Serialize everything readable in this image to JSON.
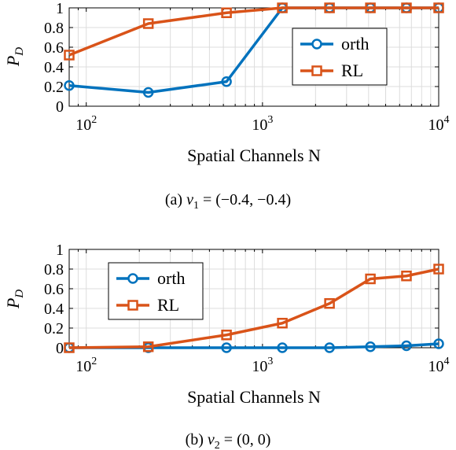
{
  "chart_data": [
    {
      "type": "line",
      "caption": "(a) ν₁ = (−0.4, −0.4)",
      "caption_label": "(a)",
      "caption_math": "ν",
      "caption_sub": "1",
      "caption_rest": " = (−0.4, −0.4)",
      "xlabel": "Spatial Channels N",
      "ylabel": "P",
      "ylabel_sub": "D",
      "xscale": "log",
      "xlim": [
        80,
        10000
      ],
      "ylim": [
        0,
        1
      ],
      "xticks": [
        {
          "base": "10",
          "exp": "2",
          "value": 100
        },
        {
          "base": "10",
          "exp": "3",
          "value": 1000
        },
        {
          "base": "10",
          "exp": "4",
          "value": 10000
        }
      ],
      "yticks": [
        "0",
        "0.2",
        "0.4",
        "0.6",
        "0.8",
        "1"
      ],
      "yticks_values": [
        0,
        0.2,
        0.4,
        0.6,
        0.8,
        1
      ],
      "grid": true,
      "legend": {
        "placement": "center-right"
      },
      "series": [
        {
          "name": "orth",
          "color": "#0072BD",
          "marker": "circle",
          "x": [
            80,
            225,
            625,
            1296,
            2401,
            4096,
            6561,
            10000
          ],
          "y": [
            0.21,
            0.14,
            0.25,
            1.0,
            1.0,
            1.0,
            1.0,
            1.0
          ]
        },
        {
          "name": "RL",
          "color": "#D95319",
          "marker": "square",
          "x": [
            80,
            225,
            625,
            1296,
            2401,
            4096,
            6561,
            10000
          ],
          "y": [
            0.52,
            0.84,
            0.95,
            1.0,
            1.0,
            1.0,
            1.0,
            1.0
          ]
        }
      ]
    },
    {
      "type": "line",
      "caption": "(b) ν₂ = (0, 0)",
      "caption_label": "(b)",
      "caption_math": "ν",
      "caption_sub": "2",
      "caption_rest": " = (0, 0)",
      "xlabel": "Spatial Channels N",
      "ylabel": "P",
      "ylabel_sub": "D",
      "xscale": "log",
      "xlim": [
        80,
        10000
      ],
      "ylim": [
        0,
        1
      ],
      "xticks": [
        {
          "base": "10",
          "exp": "2",
          "value": 100
        },
        {
          "base": "10",
          "exp": "3",
          "value": 1000
        },
        {
          "base": "10",
          "exp": "4",
          "value": 10000
        }
      ],
      "yticks": [
        "0",
        "0.2",
        "0.4",
        "0.6",
        "0.8",
        "1"
      ],
      "yticks_values": [
        0,
        0.2,
        0.4,
        0.6,
        0.8,
        1
      ],
      "grid": true,
      "legend": {
        "placement": "top-left"
      },
      "series": [
        {
          "name": "orth",
          "color": "#0072BD",
          "marker": "circle",
          "x": [
            80,
            225,
            625,
            1296,
            2401,
            4096,
            6561,
            10000
          ],
          "y": [
            0.0,
            0.0,
            0.0,
            0.0,
            0.0,
            0.01,
            0.02,
            0.04
          ]
        },
        {
          "name": "RL",
          "color": "#D95319",
          "marker": "square",
          "x": [
            80,
            225,
            625,
            1296,
            2401,
            4096,
            6561,
            10000
          ],
          "y": [
            0.0,
            0.01,
            0.13,
            0.25,
            0.45,
            0.7,
            0.73,
            0.8
          ]
        }
      ]
    }
  ]
}
